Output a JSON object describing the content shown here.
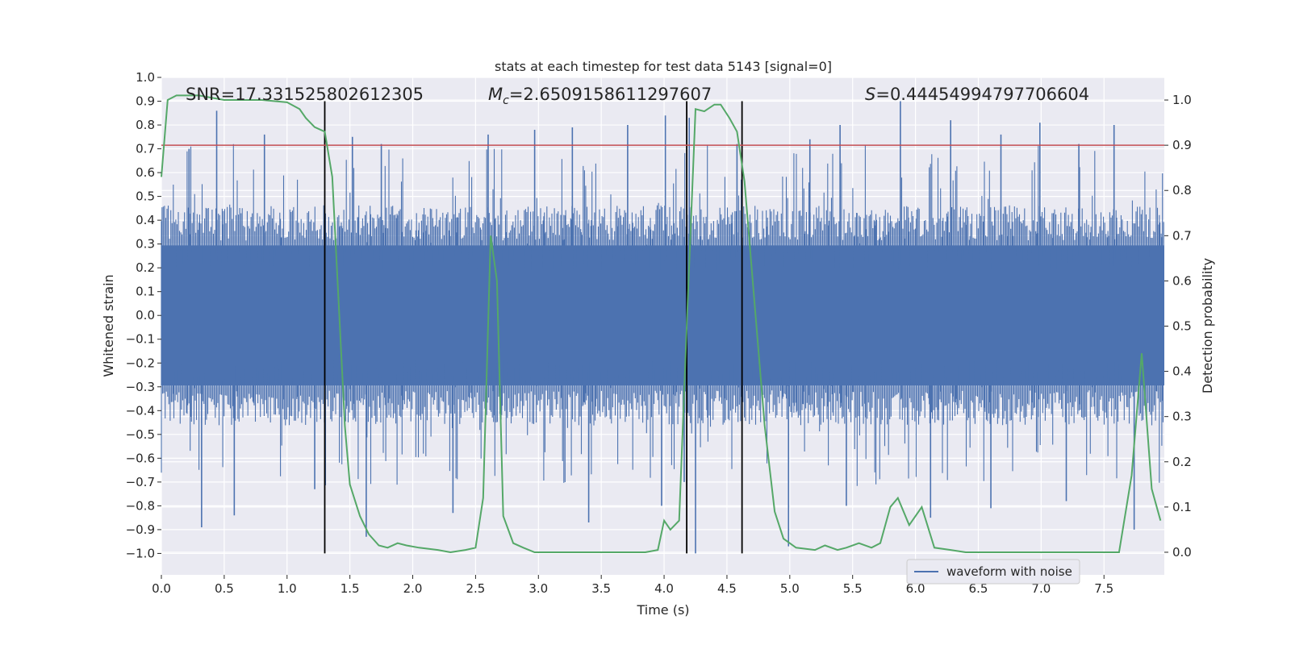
{
  "chart_data": {
    "type": "line",
    "title": "stats at each timestep for test data 5143 [signal=0]",
    "xlabel": "Time (s)",
    "ylabel": "Whitened strain",
    "y2label": "Detection probability",
    "xlim": [
      0.0,
      7.98
    ],
    "ylim": [
      -1.09,
      1.0
    ],
    "y2lim": [
      -0.05,
      1.05
    ],
    "xticks": [
      "0.0",
      "0.5",
      "1.0",
      "1.5",
      "2.0",
      "2.5",
      "3.0",
      "3.5",
      "4.0",
      "4.5",
      "5.0",
      "5.5",
      "6.0",
      "6.5",
      "7.0",
      "7.5"
    ],
    "yticks": [
      "1.0",
      "0.9",
      "0.8",
      "0.7",
      "0.6",
      "0.5",
      "0.4",
      "0.3",
      "0.2",
      "0.1",
      "0.0",
      "−0.1",
      "−0.2",
      "−0.3",
      "−0.4",
      "−0.5",
      "−0.6",
      "−0.7",
      "−0.8",
      "−0.9",
      "−1.0"
    ],
    "y2ticks": [
      "1.0",
      "0.9",
      "0.8",
      "0.7",
      "0.6",
      "0.5",
      "0.4",
      "0.3",
      "0.2",
      "0.1",
      "0.0"
    ],
    "annotations": {
      "snr": "SNR=17.331525802612305",
      "mc_symbol": "M",
      "mc_sub": "c",
      "mc_value": "=2.6509158611297607",
      "s_symbol": "S",
      "s_value": "=0.44454994797706604"
    },
    "threshold": {
      "value": 0.9,
      "axis": "y2",
      "color": "#c44e52"
    },
    "vertical_markers": [
      1.3,
      4.18,
      4.62
    ],
    "waveform": {
      "name": "waveform with noise",
      "color": "#4c72b0",
      "envelope_abs": 0.42,
      "peaks": [
        {
          "x": 0.44,
          "y": 0.86
        },
        {
          "x": 0.22,
          "y": 0.7
        },
        {
          "x": 0.82,
          "y": 0.76
        },
        {
          "x": 1.52,
          "y": 0.75
        },
        {
          "x": 1.75,
          "y": 0.72
        },
        {
          "x": 2.6,
          "y": 0.76
        },
        {
          "x": 2.97,
          "y": 0.78
        },
        {
          "x": 3.27,
          "y": 0.79
        },
        {
          "x": 3.71,
          "y": 0.8
        },
        {
          "x": 4.01,
          "y": 0.84
        },
        {
          "x": 4.2,
          "y": 0.83
        },
        {
          "x": 4.58,
          "y": 0.72
        },
        {
          "x": 5.16,
          "y": 0.74
        },
        {
          "x": 5.4,
          "y": 0.8
        },
        {
          "x": 5.88,
          "y": 0.9
        },
        {
          "x": 6.28,
          "y": 0.82
        },
        {
          "x": 6.68,
          "y": 0.76
        },
        {
          "x": 6.99,
          "y": 0.81
        },
        {
          "x": 7.3,
          "y": 0.72
        },
        {
          "x": 7.58,
          "y": 0.8
        },
        {
          "x": 0.32,
          "y": -0.89
        },
        {
          "x": 0.58,
          "y": -0.84
        },
        {
          "x": 1.22,
          "y": -0.73
        },
        {
          "x": 1.63,
          "y": -0.93
        },
        {
          "x": 2.32,
          "y": -0.83
        },
        {
          "x": 3.4,
          "y": -0.87
        },
        {
          "x": 3.98,
          "y": -0.8
        },
        {
          "x": 4.16,
          "y": -0.7
        },
        {
          "x": 4.25,
          "y": -1.0
        },
        {
          "x": 4.99,
          "y": -0.97
        },
        {
          "x": 5.45,
          "y": -0.8
        },
        {
          "x": 6.12,
          "y": -0.85
        },
        {
          "x": 6.6,
          "y": -0.81
        },
        {
          "x": 7.2,
          "y": -0.78
        },
        {
          "x": 7.74,
          "y": -0.9
        }
      ]
    },
    "probability": {
      "color": "#55a868",
      "x": [
        0.0,
        0.05,
        0.12,
        0.3,
        0.5,
        0.8,
        1.0,
        1.1,
        1.15,
        1.22,
        1.3,
        1.36,
        1.42,
        1.46,
        1.5,
        1.58,
        1.65,
        1.73,
        1.8,
        1.88,
        1.95,
        2.05,
        2.2,
        2.3,
        2.42,
        2.5,
        2.56,
        2.62,
        2.67,
        2.72,
        2.8,
        2.88,
        2.97,
        3.1,
        3.3,
        3.5,
        3.7,
        3.85,
        3.95,
        4.0,
        4.05,
        4.12,
        4.18,
        4.25,
        4.32,
        4.4,
        4.45,
        4.52,
        4.58,
        4.64,
        4.72,
        4.8,
        4.88,
        4.95,
        5.05,
        5.2,
        5.28,
        5.38,
        5.45,
        5.55,
        5.65,
        5.72,
        5.8,
        5.86,
        5.95,
        6.05,
        6.15,
        6.28,
        6.4,
        6.55,
        6.8,
        7.0,
        7.15,
        7.35,
        7.55,
        7.62,
        7.72,
        7.8,
        7.88,
        7.95
      ],
      "y": [
        0.83,
        1.0,
        1.01,
        1.01,
        1.0,
        1.0,
        0.995,
        0.98,
        0.96,
        0.94,
        0.93,
        0.83,
        0.5,
        0.28,
        0.15,
        0.08,
        0.04,
        0.015,
        0.01,
        0.02,
        0.015,
        0.01,
        0.005,
        0.0,
        0.005,
        0.01,
        0.12,
        0.7,
        0.6,
        0.08,
        0.02,
        0.01,
        0.0,
        0.0,
        0.0,
        0.0,
        0.0,
        0.0,
        0.005,
        0.07,
        0.05,
        0.07,
        0.5,
        0.98,
        0.975,
        0.99,
        0.99,
        0.96,
        0.93,
        0.82,
        0.55,
        0.28,
        0.09,
        0.03,
        0.01,
        0.005,
        0.015,
        0.005,
        0.01,
        0.02,
        0.01,
        0.02,
        0.1,
        0.12,
        0.06,
        0.1,
        0.01,
        0.005,
        0.0,
        0.0,
        0.0,
        0.0,
        0.0,
        0.0,
        0.0,
        0.0,
        0.17,
        0.44,
        0.14,
        0.07
      ]
    },
    "legend": {
      "label": "waveform with noise",
      "position": "lower-right"
    },
    "grid": true
  }
}
